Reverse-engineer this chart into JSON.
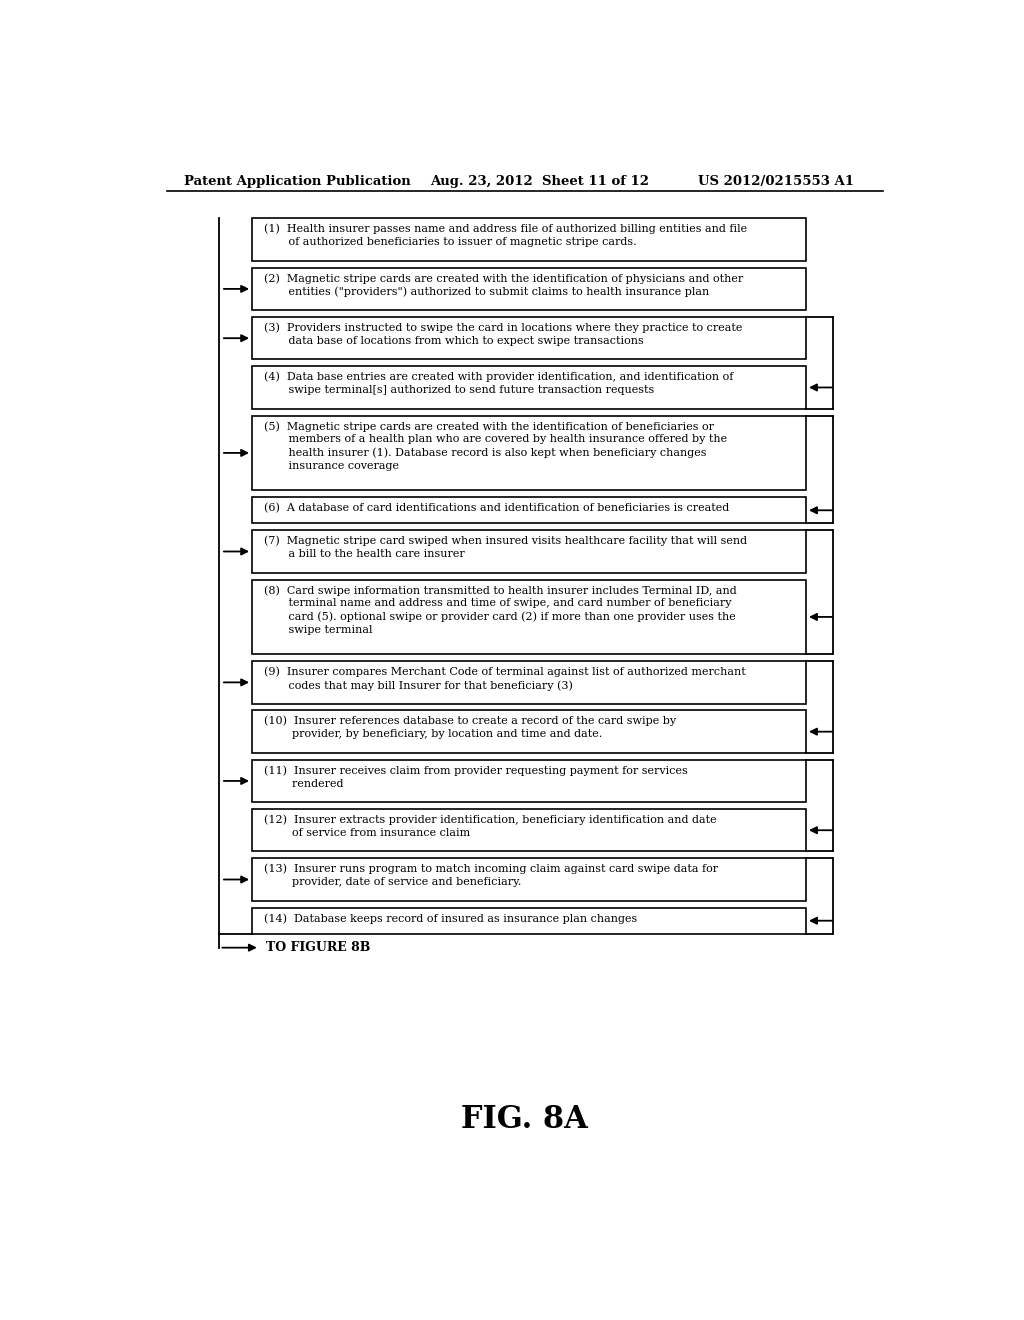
{
  "header_left": "Patent Application Publication",
  "header_mid": "Aug. 23, 2012  Sheet 11 of 12",
  "header_right": "US 2012/0215553 A1",
  "figure_label": "FIG. 8A",
  "footer_label": "TO FIGURE 8B",
  "background_color": "#ffffff",
  "box_edge_color": "#000000",
  "box_fill_color": "#ffffff",
  "text_color": "#000000",
  "steps": [
    {
      "num": 1,
      "text": "(1)  Health insurer passes name and address file of authorized billing entities and file\n       of authorized beneficiaries to issuer of magnetic stripe cards.",
      "has_left_arrow_in": false,
      "has_right_bracket_top": false,
      "has_right_bracket_bot": false,
      "has_right_arrow_in": false,
      "lines": 2
    },
    {
      "num": 2,
      "text": "(2)  Magnetic stripe cards are created with the identification of physicians and other\n       entities (\"providers\") authorized to submit claims to health insurance plan",
      "has_left_arrow_in": true,
      "has_right_bracket_top": false,
      "has_right_bracket_bot": false,
      "has_right_arrow_in": false,
      "lines": 2
    },
    {
      "num": 3,
      "text": "(3)  Providers instructed to swipe the card in locations where they practice to create\n       data base of locations from which to expect swipe transactions",
      "has_left_arrow_in": true,
      "has_right_bracket_top": true,
      "has_right_bracket_bot": false,
      "has_right_arrow_in": false,
      "lines": 2
    },
    {
      "num": 4,
      "text": "(4)  Data base entries are created with provider identification, and identification of\n       swipe terminal[s] authorized to send future transaction requests",
      "has_left_arrow_in": false,
      "has_right_bracket_top": false,
      "has_right_bracket_bot": true,
      "has_right_arrow_in": true,
      "lines": 2
    },
    {
      "num": 5,
      "text": "(5)  Magnetic stripe cards are created with the identification of beneficiaries or\n       members of a health plan who are covered by health insurance offered by the\n       health insurer (1). Database record is also kept when beneficiary changes\n       insurance coverage",
      "has_left_arrow_in": true,
      "has_right_bracket_top": true,
      "has_right_bracket_bot": false,
      "has_right_arrow_in": false,
      "lines": 4
    },
    {
      "num": 6,
      "text": "(6)  A database of card identifications and identification of beneficiaries is created",
      "has_left_arrow_in": false,
      "has_right_bracket_top": false,
      "has_right_bracket_bot": true,
      "has_right_arrow_in": true,
      "lines": 1
    },
    {
      "num": 7,
      "text": "(7)  Magnetic stripe card swiped when insured visits healthcare facility that will send\n       a bill to the health care insurer",
      "has_left_arrow_in": true,
      "has_right_bracket_top": true,
      "has_right_bracket_bot": false,
      "has_right_arrow_in": false,
      "lines": 2
    },
    {
      "num": 8,
      "text": "(8)  Card swipe information transmitted to health insurer includes Terminal ID, and\n       terminal name and address and time of swipe, and card number of beneficiary\n       card (5). optional swipe or provider card (2) if more than one provider uses the\n       swipe terminal",
      "has_left_arrow_in": false,
      "has_right_bracket_top": false,
      "has_right_bracket_bot": true,
      "has_right_arrow_in": true,
      "lines": 4
    },
    {
      "num": 9,
      "text": "(9)  Insurer compares Merchant Code of terminal against list of authorized merchant\n       codes that may bill Insurer for that beneficiary (3)",
      "has_left_arrow_in": true,
      "has_right_bracket_top": true,
      "has_right_bracket_bot": false,
      "has_right_arrow_in": false,
      "lines": 2
    },
    {
      "num": 10,
      "text": "(10)  Insurer references database to create a record of the card swipe by\n        provider, by beneficiary, by location and time and date.",
      "has_left_arrow_in": false,
      "has_right_bracket_top": false,
      "has_right_bracket_bot": true,
      "has_right_arrow_in": true,
      "lines": 2
    },
    {
      "num": 11,
      "text": "(11)  Insurer receives claim from provider requesting payment for services\n        rendered",
      "has_left_arrow_in": true,
      "has_right_bracket_top": true,
      "has_right_bracket_bot": false,
      "has_right_arrow_in": false,
      "lines": 2
    },
    {
      "num": 12,
      "text": "(12)  Insurer extracts provider identification, beneficiary identification and date\n        of service from insurance claim",
      "has_left_arrow_in": false,
      "has_right_bracket_top": false,
      "has_right_bracket_bot": true,
      "has_right_arrow_in": true,
      "lines": 2
    },
    {
      "num": 13,
      "text": "(13)  Insurer runs program to match incoming claim against card swipe data for\n        provider, date of service and beneficiary.",
      "has_left_arrow_in": true,
      "has_right_bracket_top": true,
      "has_right_bracket_bot": false,
      "has_right_arrow_in": false,
      "lines": 2
    },
    {
      "num": 14,
      "text": "(14)  Database keeps record of insured as insurance plan changes",
      "has_left_arrow_in": false,
      "has_right_bracket_top": false,
      "has_right_bracket_bot": true,
      "has_right_arrow_in": true,
      "lines": 1
    }
  ]
}
